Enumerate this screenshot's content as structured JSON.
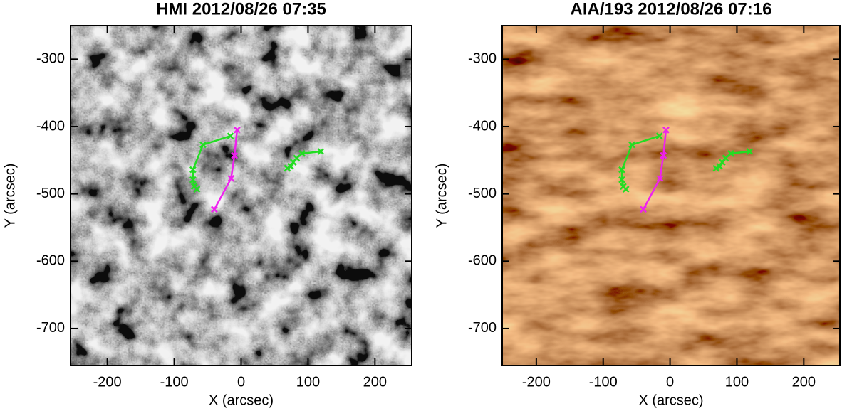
{
  "chart_data": [
    {
      "type": "line",
      "title": "HMI 2012/08/26 07:35",
      "xlabel": "X (arcsec)",
      "ylabel": "Y (arcsec)",
      "background": "hmi",
      "xlim": [
        -255,
        255
      ],
      "ylim": [
        -755,
        -250
      ],
      "xticks": [
        -200,
        -100,
        0,
        100,
        200
      ],
      "yticks": [
        -300,
        -400,
        -500,
        -600,
        -700
      ],
      "series": [
        {
          "color": "#22dd22",
          "x": [
            -16,
            -57,
            -72,
            -72,
            -70,
            -66
          ],
          "values": [
            -414,
            -427,
            -464,
            -479,
            -489,
            -493
          ]
        },
        {
          "color": "#22dd22",
          "x": [
            69,
            74,
            78,
            83,
            91,
            119
          ],
          "values": [
            -462,
            -459,
            -453,
            -447,
            -440,
            -437
          ]
        },
        {
          "color": "#ee22ee",
          "x": [
            -6,
            -10,
            -15,
            -40
          ],
          "values": [
            -405,
            -443,
            -477,
            -523
          ]
        }
      ]
    },
    {
      "type": "line",
      "title": "AIA/193 2012/08/26 07:16",
      "xlabel": "X (arcsec)",
      "ylabel": "Y (arcsec)",
      "background": "aia",
      "xlim": [
        -251,
        254
      ],
      "ylim": [
        -755,
        -250
      ],
      "xticks": [
        -200,
        -100,
        0,
        100,
        200
      ],
      "yticks": [
        -300,
        -400,
        -500,
        -600,
        -700
      ],
      "series": [
        {
          "color": "#22dd22",
          "x": [
            -16,
            -57,
            -72,
            -72,
            -70,
            -66
          ],
          "values": [
            -414,
            -427,
            -464,
            -479,
            -489,
            -493
          ]
        },
        {
          "color": "#22dd22",
          "x": [
            69,
            74,
            78,
            83,
            91,
            119
          ],
          "values": [
            -462,
            -459,
            -453,
            -447,
            -440,
            -437
          ]
        },
        {
          "color": "#ee22ee",
          "x": [
            -6,
            -10,
            -15,
            -40
          ],
          "values": [
            -405,
            -443,
            -477,
            -523
          ]
        }
      ]
    }
  ]
}
